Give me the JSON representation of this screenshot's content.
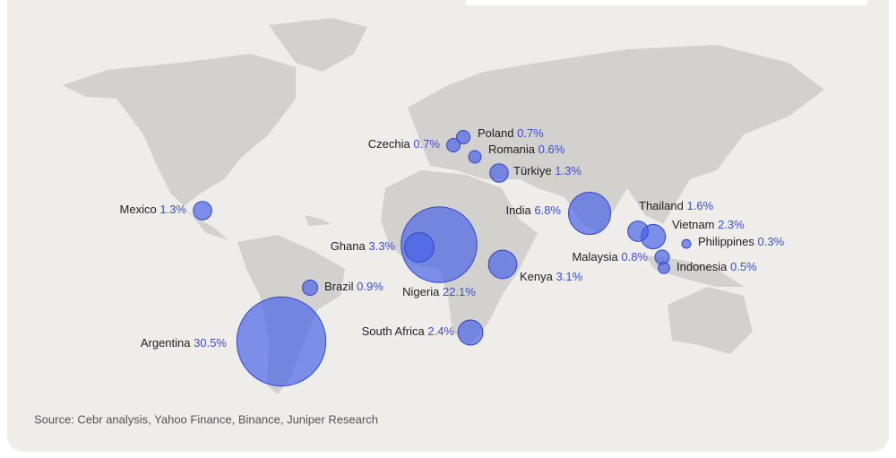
{
  "countries": [
    {
      "name": "Argentina",
      "value": 30.5,
      "label": "30.5%"
    },
    {
      "name": "Nigeria",
      "value": 22.1,
      "label": "22.1%"
    },
    {
      "name": "India",
      "value": 6.8,
      "label": "6.8%"
    },
    {
      "name": "Ghana",
      "value": 3.3,
      "label": "3.3%"
    },
    {
      "name": "Kenya",
      "value": 3.1,
      "label": "3.1%"
    },
    {
      "name": "South Africa",
      "value": 2.4,
      "label": "2.4%"
    },
    {
      "name": "Vietnam",
      "value": 2.3,
      "label": "2.3%"
    },
    {
      "name": "Thailand",
      "value": 1.6,
      "label": "1.6%"
    },
    {
      "name": "Mexico",
      "value": 1.3,
      "label": "1.3%"
    },
    {
      "name": "Türkiye",
      "value": 1.3,
      "label": "1.3%"
    },
    {
      "name": "Brazil",
      "value": 0.9,
      "label": "0.9%"
    },
    {
      "name": "Malaysia",
      "value": 0.8,
      "label": "0.8%"
    },
    {
      "name": "Poland",
      "value": 0.7,
      "label": "0.7%"
    },
    {
      "name": "Czechia",
      "value": 0.7,
      "label": "0.7%"
    },
    {
      "name": "Romania",
      "value": 0.6,
      "label": "0.6%"
    },
    {
      "name": "Indonesia",
      "value": 0.5,
      "label": "0.5%"
    },
    {
      "name": "Philippines",
      "value": 0.3,
      "label": "0.3%"
    }
  ],
  "source": "Source: Cebr analysis, Yahoo Finance, Binance, Juniper Research"
}
